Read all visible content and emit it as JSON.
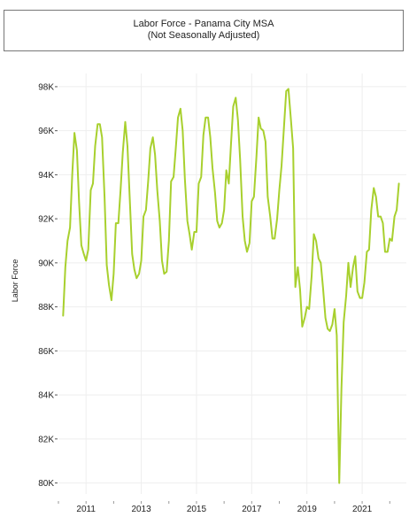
{
  "chart_data": {
    "type": "line",
    "title": "Labor Force - Panama City MSA",
    "subtitle": "(Not Seasonally Adjusted)",
    "ylabel": "Labor Force",
    "xlabel": "",
    "ylim": [
      79500,
      98600
    ],
    "xlim": [
      2010.0,
      2022.6
    ],
    "y_ticks": [
      80000,
      82000,
      84000,
      86000,
      88000,
      90000,
      92000,
      94000,
      96000,
      98000
    ],
    "y_tick_labels": [
      "80K",
      "82K",
      "84K",
      "86K",
      "88K",
      "90K",
      "92K",
      "94K",
      "96K",
      "98K"
    ],
    "x_ticks": [
      2011,
      2013,
      2015,
      2017,
      2019,
      2021
    ],
    "x_tick_labels": [
      "2011",
      "2013",
      "2015",
      "2017",
      "2019",
      "2021"
    ],
    "x_minor_ticks": [
      2010,
      2011,
      2012,
      2013,
      2014,
      2015,
      2016,
      2017,
      2018,
      2019,
      2020,
      2021,
      2022
    ],
    "grid": true,
    "line_color": "#a8d02e",
    "series": [
      {
        "values": [
          [
            2010.17,
            87600
          ],
          [
            2010.25,
            89800
          ],
          [
            2010.33,
            91000
          ],
          [
            2010.42,
            91600
          ],
          [
            2010.5,
            94000
          ],
          [
            2010.58,
            95900
          ],
          [
            2010.67,
            95100
          ],
          [
            2010.75,
            92700
          ],
          [
            2010.83,
            90800
          ],
          [
            2010.92,
            90400
          ],
          [
            2011.0,
            90100
          ],
          [
            2011.08,
            90600
          ],
          [
            2011.17,
            93300
          ],
          [
            2011.25,
            93600
          ],
          [
            2011.33,
            95300
          ],
          [
            2011.42,
            96300
          ],
          [
            2011.5,
            96300
          ],
          [
            2011.58,
            95700
          ],
          [
            2011.67,
            93000
          ],
          [
            2011.75,
            89900
          ],
          [
            2011.83,
            89000
          ],
          [
            2011.92,
            88300
          ],
          [
            2012.0,
            89500
          ],
          [
            2012.08,
            91800
          ],
          [
            2012.17,
            91800
          ],
          [
            2012.25,
            93300
          ],
          [
            2012.33,
            95000
          ],
          [
            2012.42,
            96400
          ],
          [
            2012.5,
            95300
          ],
          [
            2012.58,
            93000
          ],
          [
            2012.67,
            90400
          ],
          [
            2012.75,
            89700
          ],
          [
            2012.83,
            89300
          ],
          [
            2012.92,
            89500
          ],
          [
            2013.0,
            90100
          ],
          [
            2013.08,
            92100
          ],
          [
            2013.17,
            92400
          ],
          [
            2013.25,
            93700
          ],
          [
            2013.33,
            95200
          ],
          [
            2013.42,
            95700
          ],
          [
            2013.5,
            94900
          ],
          [
            2013.58,
            93300
          ],
          [
            2013.67,
            91900
          ],
          [
            2013.75,
            90100
          ],
          [
            2013.83,
            89500
          ],
          [
            2013.92,
            89600
          ],
          [
            2014.0,
            91000
          ],
          [
            2014.08,
            93700
          ],
          [
            2014.17,
            93900
          ],
          [
            2014.25,
            95200
          ],
          [
            2014.33,
            96600
          ],
          [
            2014.42,
            97000
          ],
          [
            2014.5,
            96000
          ],
          [
            2014.58,
            93800
          ],
          [
            2014.67,
            91900
          ],
          [
            2014.75,
            91300
          ],
          [
            2014.83,
            90600
          ],
          [
            2014.92,
            91400
          ],
          [
            2015.0,
            91400
          ],
          [
            2015.08,
            93600
          ],
          [
            2015.17,
            93900
          ],
          [
            2015.25,
            95800
          ],
          [
            2015.33,
            96600
          ],
          [
            2015.42,
            96600
          ],
          [
            2015.5,
            95700
          ],
          [
            2015.58,
            94300
          ],
          [
            2015.67,
            93200
          ],
          [
            2015.75,
            91900
          ],
          [
            2015.83,
            91600
          ],
          [
            2015.92,
            91800
          ],
          [
            2016.0,
            92400
          ],
          [
            2016.08,
            94200
          ],
          [
            2016.17,
            93600
          ],
          [
            2016.25,
            95400
          ],
          [
            2016.33,
            97100
          ],
          [
            2016.42,
            97500
          ],
          [
            2016.5,
            96500
          ],
          [
            2016.58,
            94700
          ],
          [
            2016.67,
            92100
          ],
          [
            2016.75,
            91000
          ],
          [
            2016.83,
            90500
          ],
          [
            2016.92,
            90900
          ],
          [
            2017.0,
            92800
          ],
          [
            2017.08,
            93000
          ],
          [
            2017.17,
            94800
          ],
          [
            2017.25,
            96600
          ],
          [
            2017.33,
            96100
          ],
          [
            2017.42,
            96000
          ],
          [
            2017.5,
            95500
          ],
          [
            2017.58,
            93000
          ],
          [
            2017.67,
            92100
          ],
          [
            2017.75,
            91100
          ],
          [
            2017.83,
            91100
          ],
          [
            2017.92,
            92000
          ],
          [
            2018.0,
            93300
          ],
          [
            2018.08,
            94400
          ],
          [
            2018.17,
            96200
          ],
          [
            2018.25,
            97800
          ],
          [
            2018.33,
            97900
          ],
          [
            2018.42,
            96500
          ],
          [
            2018.5,
            95200
          ],
          [
            2018.58,
            88900
          ],
          [
            2018.67,
            89800
          ],
          [
            2018.75,
            88800
          ],
          [
            2018.83,
            87100
          ],
          [
            2018.92,
            87500
          ],
          [
            2019.0,
            88000
          ],
          [
            2019.08,
            87900
          ],
          [
            2019.17,
            89400
          ],
          [
            2019.25,
            91300
          ],
          [
            2019.33,
            91000
          ],
          [
            2019.42,
            90200
          ],
          [
            2019.5,
            90000
          ],
          [
            2019.58,
            88900
          ],
          [
            2019.67,
            87500
          ],
          [
            2019.75,
            87000
          ],
          [
            2019.83,
            86900
          ],
          [
            2019.92,
            87200
          ],
          [
            2020.0,
            87900
          ],
          [
            2020.08,
            86700
          ],
          [
            2020.17,
            80000
          ],
          [
            2020.25,
            84300
          ],
          [
            2020.33,
            87300
          ],
          [
            2020.42,
            88500
          ],
          [
            2020.5,
            90000
          ],
          [
            2020.58,
            88900
          ],
          [
            2020.67,
            89800
          ],
          [
            2020.75,
            90300
          ],
          [
            2020.83,
            88700
          ],
          [
            2020.92,
            88400
          ],
          [
            2021.0,
            88400
          ],
          [
            2021.08,
            89100
          ],
          [
            2021.17,
            90500
          ],
          [
            2021.25,
            90600
          ],
          [
            2021.33,
            92400
          ],
          [
            2021.42,
            93400
          ],
          [
            2021.5,
            93000
          ],
          [
            2021.58,
            92100
          ],
          [
            2021.67,
            92100
          ],
          [
            2021.75,
            91800
          ],
          [
            2021.83,
            90500
          ],
          [
            2021.92,
            90500
          ],
          [
            2022.0,
            91100
          ],
          [
            2022.08,
            91000
          ],
          [
            2022.17,
            92100
          ],
          [
            2022.25,
            92400
          ],
          [
            2022.33,
            93600
          ]
        ]
      }
    ]
  }
}
